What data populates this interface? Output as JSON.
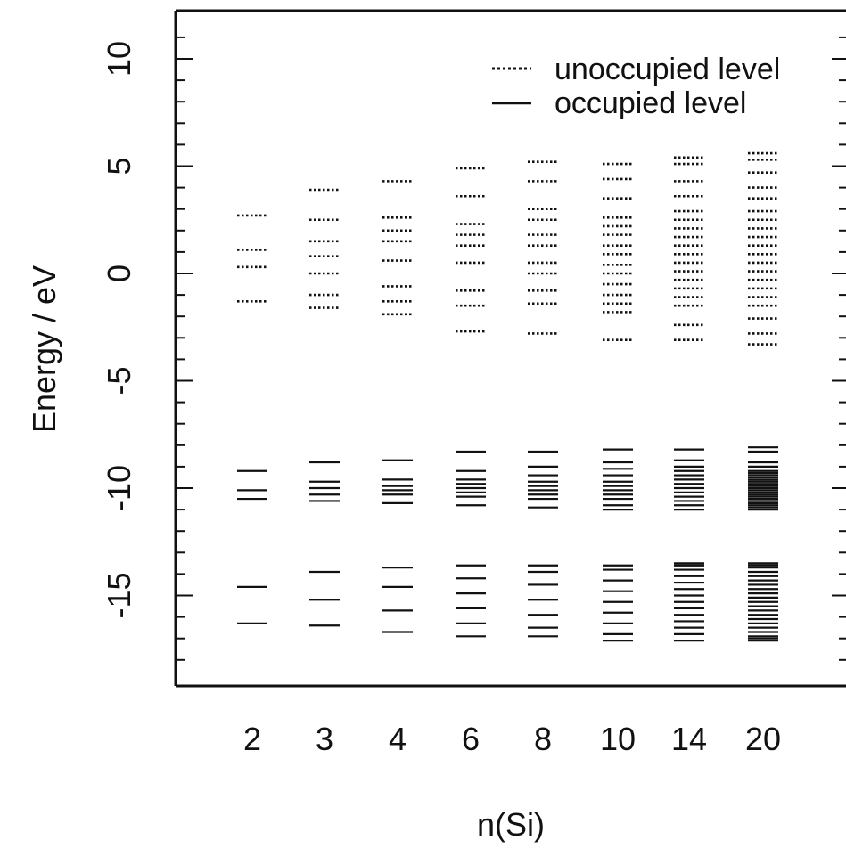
{
  "chart_data": {
    "type": "scatter",
    "xlabel": "n(Si)",
    "ylabel": "Energy / eV",
    "categories": [
      "2",
      "3",
      "4",
      "6",
      "8",
      "10",
      "14",
      "20"
    ],
    "ylim": [
      -19,
      12
    ],
    "yticks": [
      10,
      5,
      0,
      -5,
      -10,
      -15
    ],
    "grid": false,
    "legend": {
      "position": "top-right",
      "entries": [
        "unoccupied level",
        "occupied level"
      ]
    },
    "series": [
      {
        "name": "unoccupied level",
        "style": "dotted",
        "levels": [
          [
            2.7,
            1.1,
            0.3,
            -1.3
          ],
          [
            3.9,
            2.5,
            1.5,
            0.8,
            0,
            -1.0,
            -1.6
          ],
          [
            4.3,
            2.6,
            2.0,
            1.5,
            0.6,
            -0.6,
            -1.3,
            -1.9
          ],
          [
            4.9,
            3.6,
            2.3,
            1.8,
            1.3,
            0.5,
            -0.8,
            -1.5,
            -2.7
          ],
          [
            5.2,
            4.3,
            3.0,
            2.5,
            1.8,
            1.3,
            0.5,
            0,
            -0.8,
            -1.4,
            -2.8
          ],
          [
            5.1,
            4.4,
            3.5,
            2.6,
            2.2,
            1.8,
            1.3,
            0.9,
            0.4,
            0,
            -0.5,
            -1.0,
            -1.4,
            -1.8,
            -3.1
          ],
          [
            5.4,
            5.1,
            4.3,
            3.6,
            2.9,
            2.5,
            2.1,
            1.7,
            1.3,
            0.9,
            0.5,
            0.1,
            -0.3,
            -0.7,
            -1.1,
            -1.5,
            -2.4,
            -3.1
          ],
          [
            5.6,
            5.3,
            4.7,
            4.0,
            3.5,
            2.9,
            2.5,
            2.1,
            1.7,
            1.3,
            0.9,
            0.5,
            0.1,
            -0.3,
            -0.7,
            -1.1,
            -1.5,
            -2.1,
            -2.8,
            -3.3
          ]
        ]
      },
      {
        "name": "occupied level",
        "style": "solid",
        "levels": [
          [
            -9.2,
            -10.1,
            -10.5,
            -14.6,
            -16.3
          ],
          [
            -8.8,
            -9.7,
            -10.0,
            -10.3,
            -10.6,
            -13.9,
            -15.2,
            -16.4
          ],
          [
            -8.7,
            -9.6,
            -9.9,
            -10.1,
            -10.3,
            -10.7,
            -13.7,
            -14.6,
            -15.7,
            -16.7
          ],
          [
            -8.3,
            -9.2,
            -9.6,
            -9.8,
            -10.0,
            -10.2,
            -10.4,
            -10.8,
            -13.6,
            -14.2,
            -14.9,
            -15.6,
            -16.3,
            -16.9
          ],
          [
            -8.3,
            -9.0,
            -9.4,
            -9.7,
            -9.9,
            -10.1,
            -10.3,
            -10.5,
            -10.9,
            -13.6,
            -13.9,
            -14.5,
            -15.2,
            -15.9,
            -16.5,
            -16.9
          ],
          [
            -8.2,
            -8.8,
            -9.1,
            -9.4,
            -9.7,
            -9.9,
            -10.1,
            -10.3,
            -10.5,
            -10.8,
            -11.0,
            -13.6,
            -13.8,
            -14.3,
            -14.8,
            -15.3,
            -15.8,
            -16.3,
            -16.8,
            -17.1
          ],
          [
            -8.2,
            -8.7,
            -9.0,
            -9.2,
            -9.4,
            -9.6,
            -9.8,
            -10.0,
            -10.2,
            -10.4,
            -10.6,
            -10.8,
            -11.0,
            -13.5,
            -13.6,
            -13.8,
            -14.1,
            -14.4,
            -14.7,
            -15.0,
            -15.3,
            -15.6,
            -15.9,
            -16.2,
            -16.5,
            -16.8,
            -17.1
          ],
          [
            -8.1,
            -8.3,
            -8.8,
            -9.0,
            -9.2,
            -9.3,
            -9.4,
            -9.5,
            -9.6,
            -9.7,
            -9.8,
            -9.9,
            -10.0,
            -10.1,
            -10.2,
            -10.3,
            -10.4,
            -10.5,
            -10.6,
            -10.7,
            -10.8,
            -10.9,
            -11.0,
            -13.5,
            -13.6,
            -13.7,
            -13.9,
            -14.1,
            -14.3,
            -14.5,
            -14.7,
            -14.9,
            -15.1,
            -15.3,
            -15.5,
            -15.7,
            -15.9,
            -16.1,
            -16.3,
            -16.5,
            -16.7,
            -16.9,
            -17.0,
            -17.1
          ]
        ]
      }
    ]
  }
}
